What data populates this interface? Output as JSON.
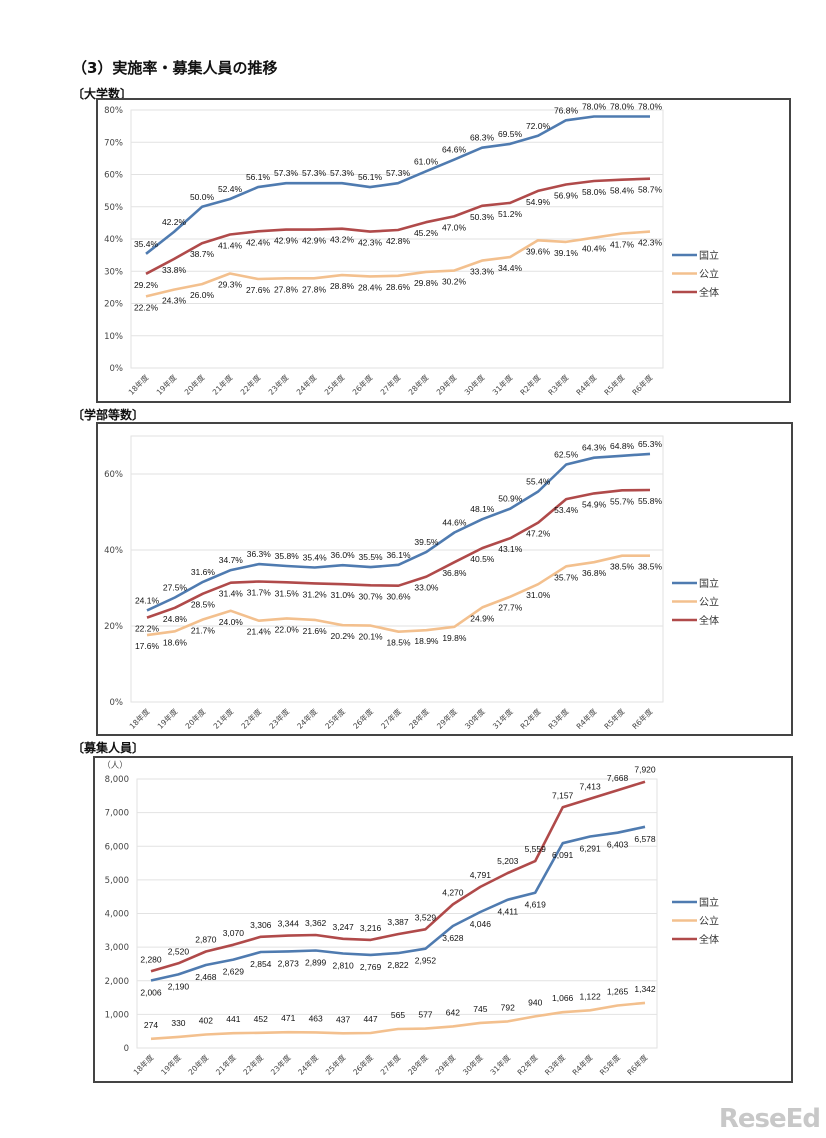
{
  "page_title": "（3）実施率・募集人員の推移",
  "sections": [
    "〔大学数〕",
    "〔学部等数〕",
    "〔募集人員〕"
  ],
  "logo_text": "ReseEd",
  "colors": {
    "国立": "#4f7bb0",
    "公立": "#f3c08e",
    "全体": "#b04a4a"
  },
  "chart_data": [
    {
      "type": "line",
      "title": "",
      "categories": [
        "18年度",
        "19年度",
        "20年度",
        "21年度",
        "22年度",
        "23年度",
        "24年度",
        "25年度",
        "26年度",
        "27年度",
        "28年度",
        "29年度",
        "30年度",
        "31年度",
        "R2年度",
        "R3年度",
        "R4年度",
        "R5年度",
        "R6年度"
      ],
      "ylim": [
        0,
        80
      ],
      "yticks": [
        0,
        10,
        20,
        30,
        40,
        50,
        60,
        70,
        80
      ],
      "ytick_labels": [
        "0%",
        "10%",
        "20%",
        "30%",
        "40%",
        "50%",
        "60%",
        "70%",
        "80%"
      ],
      "value_suffix": "%",
      "grid": true,
      "legend": "right",
      "series": [
        {
          "name": "国立",
          "values": [
            35.4,
            42.2,
            50.0,
            52.4,
            56.1,
            57.3,
            57.3,
            57.3,
            56.1,
            57.3,
            61.0,
            64.6,
            68.3,
            69.5,
            72.0,
            76.8,
            78.0,
            78.0,
            78.0
          ]
        },
        {
          "name": "公立",
          "values": [
            22.2,
            24.3,
            26.0,
            29.3,
            27.6,
            27.8,
            27.8,
            28.8,
            28.4,
            28.6,
            29.8,
            30.2,
            33.3,
            34.4,
            39.6,
            39.1,
            40.4,
            41.7,
            42.3
          ]
        },
        {
          "name": "全体",
          "values": [
            29.2,
            33.8,
            38.7,
            41.4,
            42.4,
            42.9,
            42.9,
            43.2,
            42.3,
            42.8,
            45.2,
            47.0,
            50.3,
            51.2,
            54.9,
            56.9,
            58.0,
            58.4,
            58.7
          ]
        }
      ]
    },
    {
      "type": "line",
      "title": "",
      "categories": [
        "18年度",
        "19年度",
        "20年度",
        "21年度",
        "22年度",
        "23年度",
        "24年度",
        "25年度",
        "26年度",
        "27年度",
        "28年度",
        "29年度",
        "30年度",
        "31年度",
        "R2年度",
        "R3年度",
        "R4年度",
        "R5年度",
        "R6年度"
      ],
      "ylim": [
        0,
        70
      ],
      "yticks": [
        0,
        20,
        40,
        60
      ],
      "ytick_labels": [
        "0%",
        "20%",
        "40%",
        "60%"
      ],
      "value_suffix": "%",
      "grid": true,
      "legend": "right",
      "series": [
        {
          "name": "国立",
          "values": [
            24.1,
            27.5,
            31.6,
            34.7,
            36.3,
            35.8,
            35.4,
            36.0,
            35.5,
            36.1,
            39.5,
            44.6,
            48.1,
            50.9,
            55.4,
            62.5,
            64.3,
            64.8,
            65.3
          ]
        },
        {
          "name": "公立",
          "values": [
            17.6,
            18.6,
            21.7,
            24.0,
            21.4,
            22.0,
            21.6,
            20.2,
            20.1,
            18.5,
            18.9,
            19.8,
            24.9,
            27.7,
            31.0,
            35.7,
            36.8,
            38.5,
            38.5
          ]
        },
        {
          "name": "全体",
          "values": [
            22.2,
            24.8,
            28.5,
            31.4,
            31.7,
            31.5,
            31.2,
            31.0,
            30.7,
            30.6,
            33.0,
            36.8,
            40.5,
            43.1,
            47.2,
            53.4,
            54.9,
            55.7,
            55.8
          ]
        }
      ]
    },
    {
      "type": "line",
      "title": "",
      "ylabel": "（人）",
      "categories": [
        "18年度",
        "19年度",
        "20年度",
        "21年度",
        "22年度",
        "23年度",
        "24年度",
        "25年度",
        "26年度",
        "27年度",
        "28年度",
        "29年度",
        "30年度",
        "31年度",
        "R2年度",
        "R3年度",
        "R4年度",
        "R5年度",
        "R6年度"
      ],
      "ylim": [
        0,
        8000
      ],
      "yticks": [
        0,
        1000,
        2000,
        3000,
        4000,
        5000,
        6000,
        7000,
        8000
      ],
      "ytick_labels": [
        "0",
        "1,000",
        "2,000",
        "3,000",
        "4,000",
        "5,000",
        "6,000",
        "7,000",
        "8,000"
      ],
      "value_suffix": "",
      "grid": true,
      "legend": "right",
      "series": [
        {
          "name": "国立",
          "values": [
            2006,
            2190,
            2468,
            2629,
            2854,
            2873,
            2899,
            2810,
            2769,
            2822,
            2952,
            3628,
            4046,
            4411,
            4619,
            6091,
            6291,
            6403,
            6578
          ]
        },
        {
          "name": "公立",
          "values": [
            274,
            330,
            402,
            441,
            452,
            471,
            463,
            437,
            447,
            565,
            577,
            642,
            745,
            792,
            940,
            1066,
            1122,
            1265,
            1342
          ]
        },
        {
          "name": "全体",
          "values": [
            2280,
            2520,
            2870,
            3070,
            3306,
            3344,
            3362,
            3247,
            3216,
            3387,
            3529,
            4270,
            4791,
            5203,
            5559,
            7157,
            7413,
            7668,
            7920
          ]
        }
      ]
    }
  ]
}
